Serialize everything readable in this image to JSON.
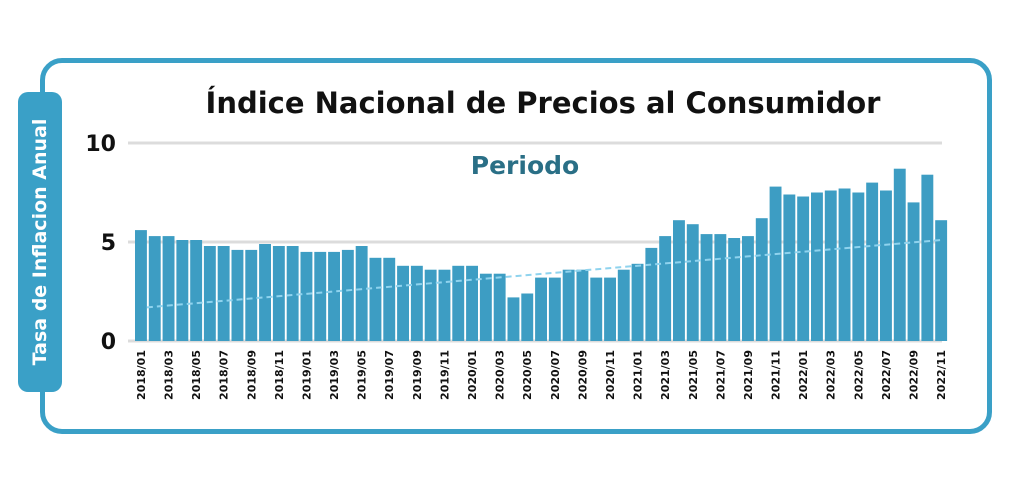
{
  "chart_data": {
    "type": "bar",
    "title": "Índice Nacional de Precios al Consumidor",
    "xlabel": "Periodo",
    "ylabel": "Tasa de Inflacion Anual",
    "ylim": [
      0,
      10
    ],
    "yticks": [
      "0",
      "5",
      "10"
    ],
    "grid": true,
    "categories": [
      "2018/01",
      "2018/02",
      "2018/03",
      "2018/04",
      "2018/05",
      "2018/06",
      "2018/07",
      "2018/08",
      "2018/09",
      "2018/10",
      "2018/11",
      "2018/12",
      "2019/01",
      "2019/02",
      "2019/03",
      "2019/04",
      "2019/05",
      "2019/06",
      "2019/07",
      "2019/08",
      "2019/09",
      "2019/10",
      "2019/11",
      "2019/12",
      "2020/01",
      "2020/02",
      "2020/03",
      "2020/04",
      "2020/05",
      "2020/06",
      "2020/07",
      "2020/08",
      "2020/09",
      "2020/10",
      "2020/11",
      "2020/12",
      "2021/01",
      "2021/02",
      "2021/03",
      "2021/04",
      "2021/05",
      "2021/06",
      "2021/07",
      "2021/08",
      "2021/09",
      "2021/10",
      "2021/11",
      "2021/12",
      "2022/01",
      "2022/02",
      "2022/03",
      "2022/04",
      "2022/05",
      "2022/06",
      "2022/07",
      "2022/08",
      "2022/09",
      "2022/10",
      "2022/11"
    ],
    "tick_labels": [
      "2018/01",
      "2018/03",
      "2018/05",
      "2018/07",
      "2018/09",
      "2018/11",
      "2019/01",
      "2019/03",
      "2019/05",
      "2019/07",
      "2019/09",
      "2019/11",
      "2020/01",
      "2020/03",
      "2020/05",
      "2020/07",
      "2020/09",
      "2020/11",
      "2021/01",
      "2021/03",
      "2021/05",
      "2021/07",
      "2021/09",
      "2021/11",
      "2022/01",
      "2022/03",
      "2022/05",
      "2022/07",
      "2022/09",
      "2022/11"
    ],
    "values": [
      5.6,
      5.3,
      5.3,
      5.1,
      5.1,
      4.8,
      4.8,
      4.6,
      4.6,
      4.9,
      4.8,
      4.8,
      4.5,
      4.5,
      4.5,
      4.6,
      4.8,
      4.2,
      4.2,
      3.8,
      3.8,
      3.6,
      3.6,
      3.8,
      3.8,
      3.4,
      3.4,
      2.2,
      2.4,
      3.2,
      3.2,
      3.6,
      3.6,
      3.2,
      3.2,
      3.6,
      3.9,
      4.7,
      5.3,
      6.1,
      5.9,
      5.4,
      5.4,
      5.2,
      5.3,
      6.2,
      7.8,
      7.4,
      7.3,
      7.5,
      7.6,
      7.7,
      7.5,
      8.0,
      7.6,
      8.7,
      7.0,
      8.4,
      6.1
    ],
    "trendline": {
      "start": 1.7,
      "end": 5.1,
      "style": "dashed"
    },
    "colors": {
      "bar": "#3d9dc3",
      "trend": "#8fd3ee",
      "title": "#111111",
      "xlabel": "#2a6f86",
      "frame": "#3aa0c7",
      "grid": "#dcdcdc"
    }
  }
}
